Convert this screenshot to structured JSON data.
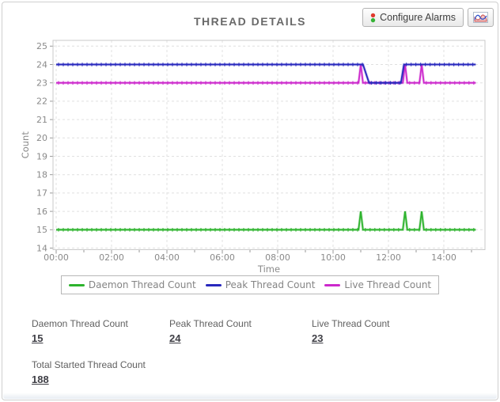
{
  "header": {
    "title": "THREAD DETAILS",
    "configure_alarms_label": "Configure Alarms"
  },
  "colors": {
    "daemon": "#2db32d",
    "peak": "#2828bd",
    "live": "#cc29cc",
    "grid": "#e0e0e0",
    "plot_border": "#c9c9c9",
    "axis_text": "#8a8a8a",
    "tick": "#9a9a9a"
  },
  "chart_data": {
    "type": "line",
    "title": "THREAD DETAILS",
    "xlabel": "Time",
    "ylabel": "Count",
    "ylim": [
      14,
      25
    ],
    "xlim_hours": [
      0,
      15.5
    ],
    "grid": true,
    "legend_position": "bottom",
    "x_major_ticks": [
      {
        "hour": 0,
        "label": "00:00"
      },
      {
        "hour": 2,
        "label": "02:00"
      },
      {
        "hour": 4,
        "label": "04:00"
      },
      {
        "hour": 6,
        "label": "06:00"
      },
      {
        "hour": 8,
        "label": "08:00"
      },
      {
        "hour": 10,
        "label": "10:00"
      },
      {
        "hour": 12,
        "label": "12:00"
      },
      {
        "hour": 14,
        "label": "14:00"
      }
    ],
    "x_minor_tick_hours": [
      0,
      1,
      2,
      3,
      4,
      5,
      6,
      7,
      8,
      9,
      10,
      11,
      12,
      13,
      14,
      15
    ],
    "y_ticks": [
      14,
      15,
      16,
      17,
      18,
      19,
      20,
      21,
      22,
      23,
      24,
      25
    ],
    "draw_order": [
      0,
      2,
      1
    ],
    "series": [
      {
        "name": "Daemon Thread Count",
        "color": "#2db32d",
        "points": [
          [
            0,
            15
          ],
          [
            10.92,
            15
          ],
          [
            11.0,
            16
          ],
          [
            11.08,
            15
          ],
          [
            12.52,
            15
          ],
          [
            12.6,
            16
          ],
          [
            12.68,
            15
          ],
          [
            13.12,
            15
          ],
          [
            13.2,
            16
          ],
          [
            13.28,
            15
          ],
          [
            15.15,
            15
          ]
        ]
      },
      {
        "name": "Peak Thread Count",
        "color": "#2828bd",
        "points": [
          [
            0,
            24
          ],
          [
            11.08,
            24
          ],
          [
            11.3,
            23
          ],
          [
            12.45,
            23
          ],
          [
            12.56,
            24
          ],
          [
            15.15,
            24
          ]
        ]
      },
      {
        "name": "Live Thread Count",
        "color": "#cc29cc",
        "points": [
          [
            0,
            23
          ],
          [
            10.92,
            23
          ],
          [
            11.0,
            24
          ],
          [
            11.08,
            23
          ],
          [
            12.52,
            23
          ],
          [
            12.6,
            24
          ],
          [
            12.68,
            23
          ],
          [
            13.12,
            23
          ],
          [
            13.2,
            24
          ],
          [
            13.28,
            23
          ],
          [
            15.15,
            23
          ]
        ]
      }
    ]
  },
  "stats": [
    {
      "label": "Daemon Thread Count",
      "value": "15"
    },
    {
      "label": "Peak Thread Count",
      "value": "24"
    },
    {
      "label": "Live Thread Count",
      "value": "23"
    },
    {
      "label": "Total Started Thread Count",
      "value": "188"
    }
  ]
}
